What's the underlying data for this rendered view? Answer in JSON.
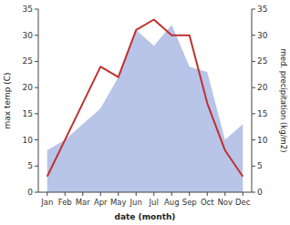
{
  "chart_data": {
    "type": "line",
    "xlabel": "date (month)",
    "ylabel": "max temp (C)",
    "y2label": "med. precipitation (kg/m2)",
    "categories": [
      "Jan",
      "Feb",
      "Mar",
      "Apr",
      "May",
      "Jun",
      "Jul",
      "Aug",
      "Sep",
      "Oct",
      "Nov",
      "Dec"
    ],
    "series": [
      {
        "type": "area",
        "color": "#b8c4e8",
        "axis": "y2",
        "values": [
          8,
          10,
          13,
          16,
          22,
          31,
          28,
          32,
          24,
          23,
          10,
          13
        ]
      },
      {
        "type": "line",
        "color": "#c03030",
        "values": [
          3,
          10,
          17,
          24,
          22,
          31,
          33,
          30,
          30,
          17,
          8,
          3
        ]
      }
    ],
    "ylim": [
      0,
      35
    ],
    "yticks": [
      0,
      5,
      10,
      15,
      20,
      25,
      30,
      35
    ],
    "y2lim": [
      0,
      35
    ],
    "y2ticks": [
      0,
      5,
      10,
      15,
      20,
      25,
      30,
      35
    ],
    "grid": false
  }
}
